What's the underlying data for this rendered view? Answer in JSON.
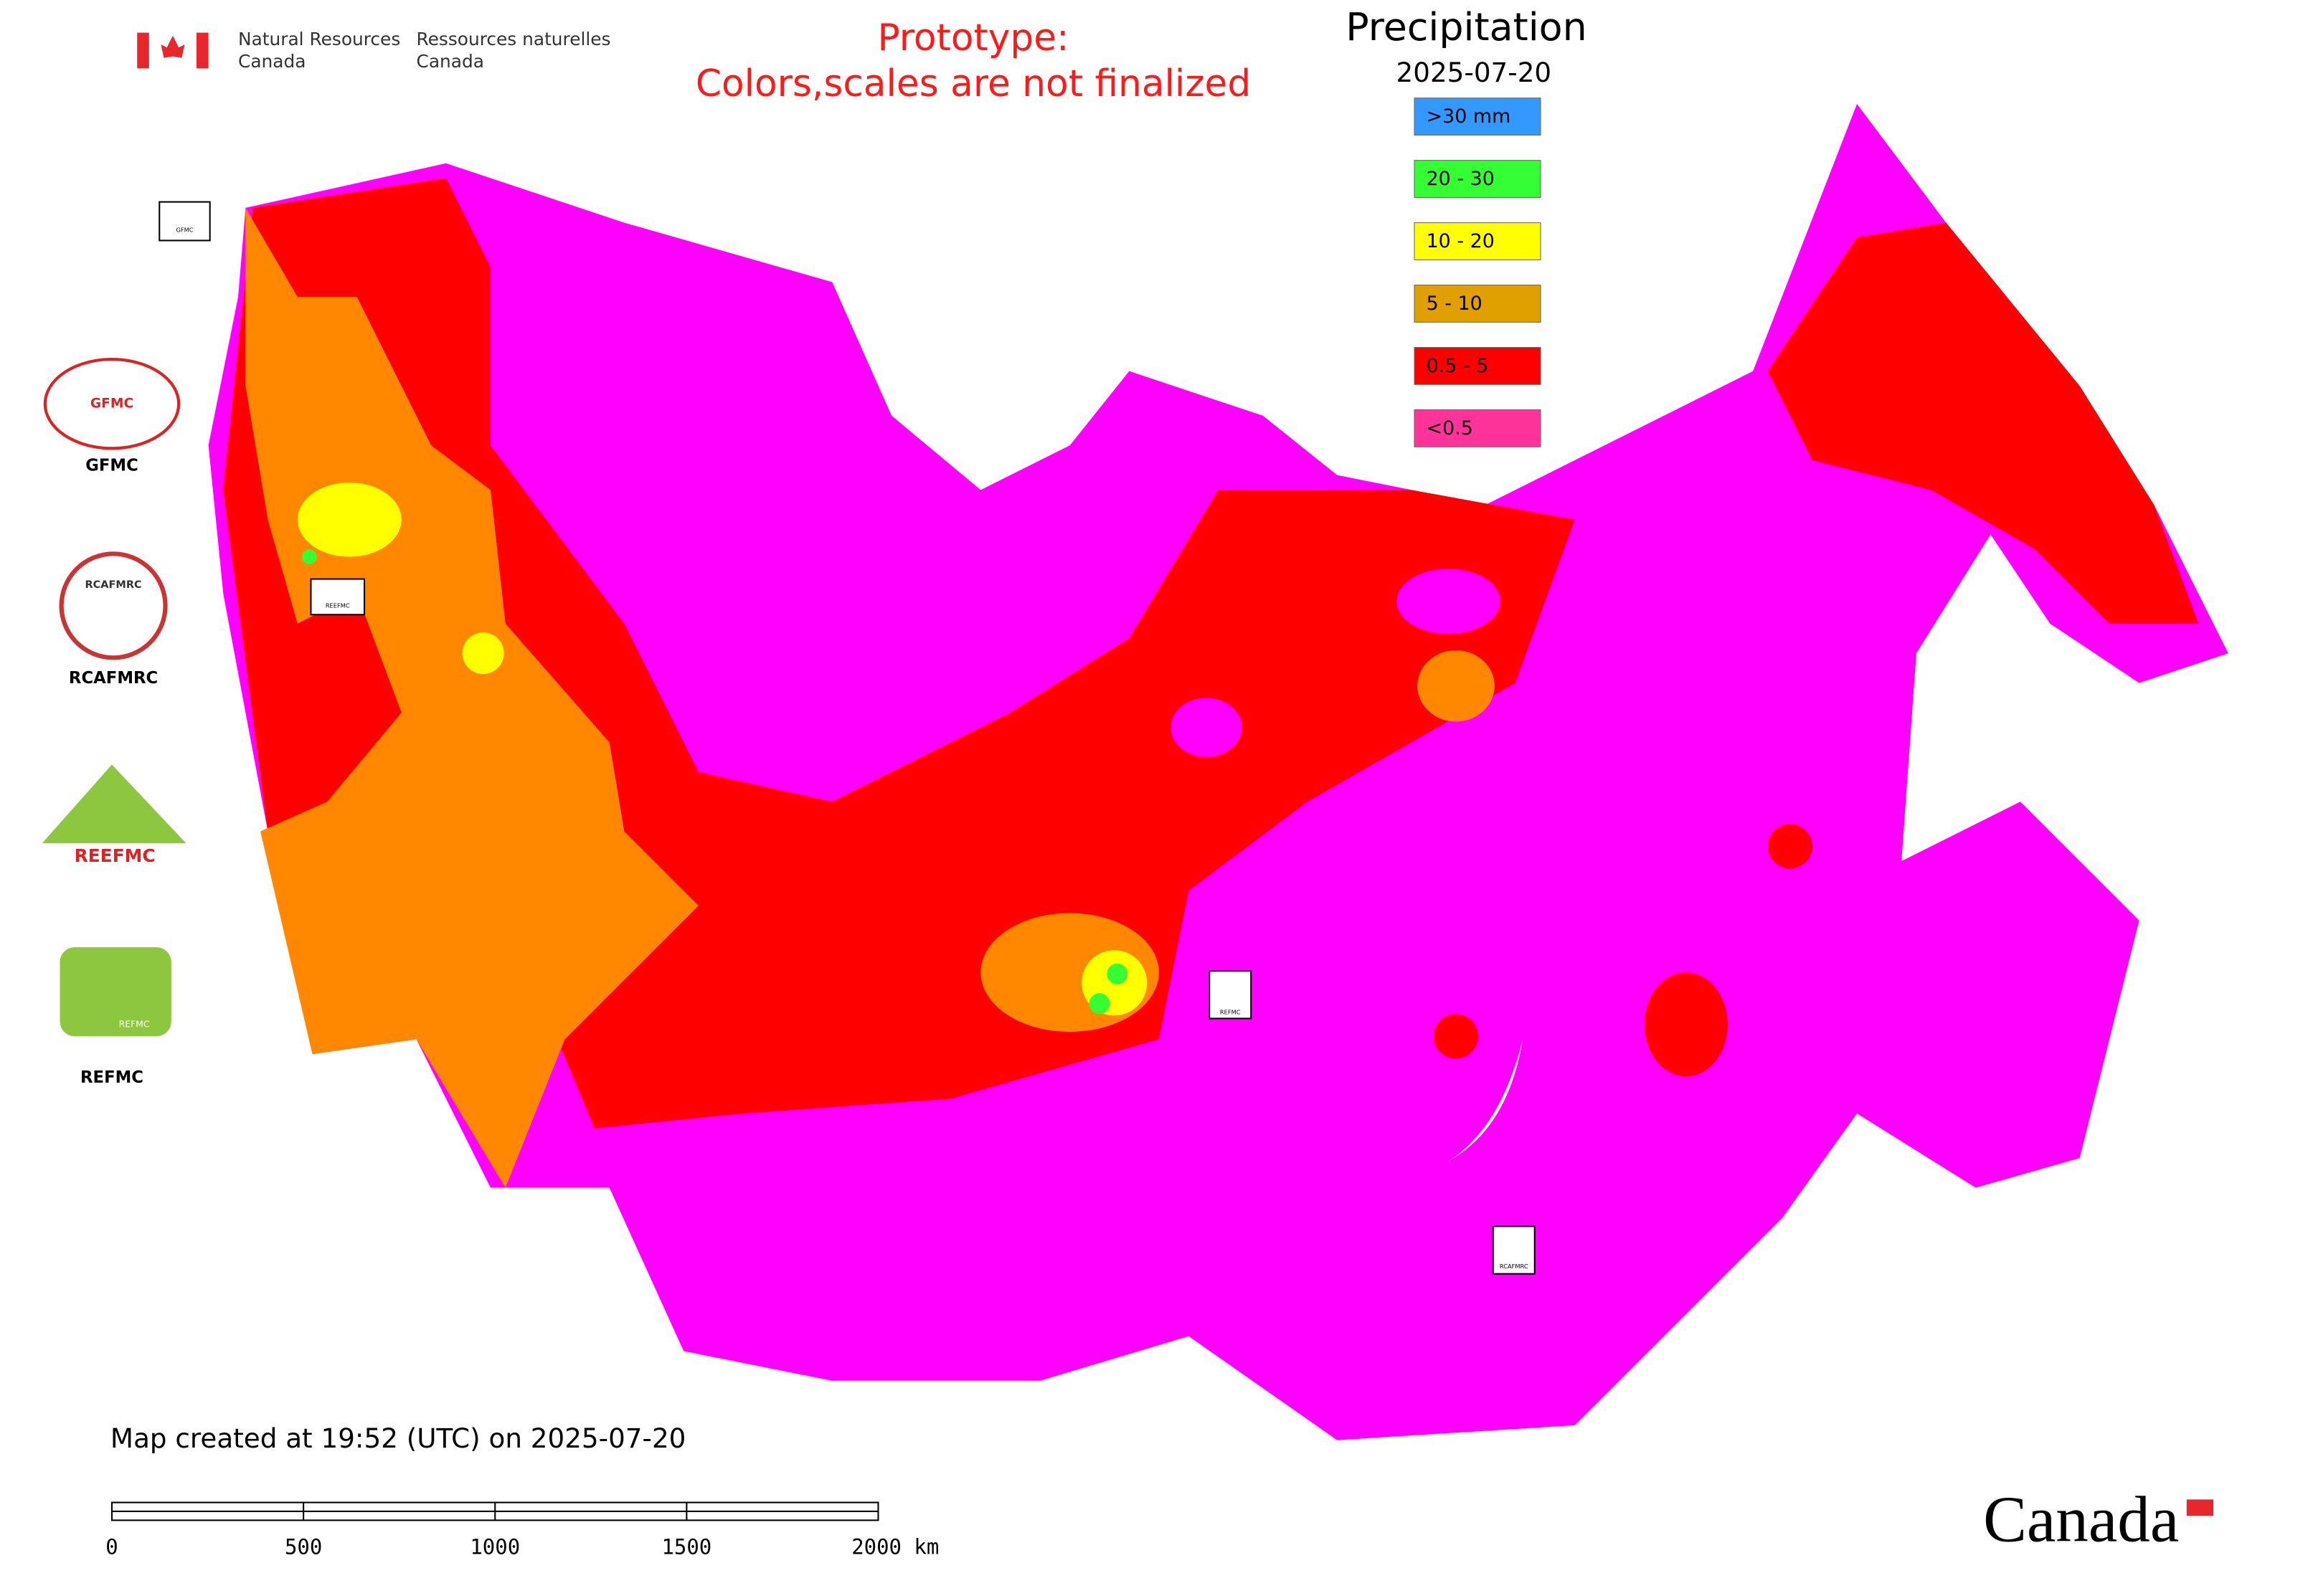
{
  "header": {
    "agency_en": [
      "Natural Resources",
      "Canada"
    ],
    "agency_fr": [
      "Ressources naturelles",
      "Canada"
    ]
  },
  "notice": [
    "Prototype:",
    "Colors,scales are not finalized"
  ],
  "title": "Precipitation",
  "date": "2025-07-20",
  "legend": [
    {
      "label": ">30 mm",
      "color": "#3399ff"
    },
    {
      "label": "20 - 30",
      "color": "#33ff33"
    },
    {
      "label": "10 - 20",
      "color": "#ffff00"
    },
    {
      "label": "5 - 10",
      "color": "#e0a000"
    },
    {
      "label": "0.5 - 5",
      "color": "#ff0000"
    },
    {
      "label": "<0.5",
      "color": "#ff3399"
    }
  ],
  "logos": [
    "GFMC",
    "RCAFMRC",
    "REEFMC",
    "REFMC"
  ],
  "logo_captions": [
    "GFMC",
    "RCAFMRC",
    "REFMC"
  ],
  "map_markers": [
    "GFMC",
    "REEFMC",
    "REFMC",
    "RCAFMRC"
  ],
  "footer": "Map created at 19:52 (UTC) on 2025-07-20",
  "scale_bar": [
    "0",
    "500",
    "1000",
    "1500",
    "2000 km"
  ],
  "wordmark": "Canada"
}
